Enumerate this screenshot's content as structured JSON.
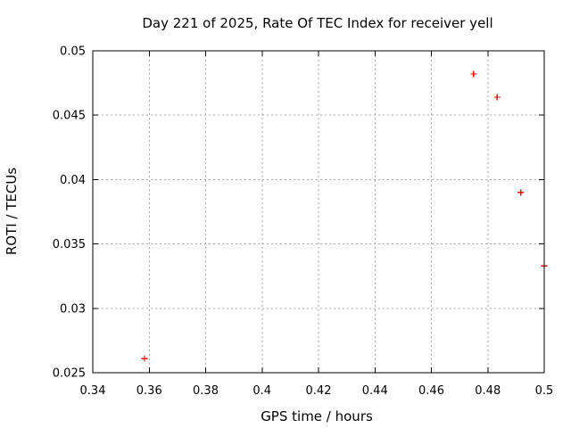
{
  "chart_data": {
    "type": "scatter",
    "title": "Day 221 of 2025, Rate Of TEC Index for receiver yell",
    "xlabel": "GPS time / hours",
    "ylabel": "ROTI / TECUs",
    "xlim": [
      0.34,
      0.5
    ],
    "ylim": [
      0.025,
      0.05
    ],
    "xtick_values": [
      0.34,
      0.36,
      0.38,
      0.4,
      0.42,
      0.44,
      0.46,
      0.48,
      0.5
    ],
    "xtick_labels": [
      "0.34",
      "0.36",
      "0.38",
      "0.4",
      "0.42",
      "0.44",
      "0.46",
      "0.48",
      "0.5"
    ],
    "ytick_values": [
      0.025,
      0.03,
      0.035,
      0.04,
      0.045,
      0.05
    ],
    "ytick_labels": [
      "0.025",
      "0.03",
      "0.035",
      "0.04",
      "0.045",
      "0.05"
    ],
    "grid": true,
    "legend": "none",
    "series": [
      {
        "name": "ROTI",
        "marker": "plus",
        "color": "#ff0000",
        "points": [
          {
            "x": 0.358333,
            "y": 0.0261
          },
          {
            "x": 0.475,
            "y": 0.0482
          },
          {
            "x": 0.483333,
            "y": 0.0464
          },
          {
            "x": 0.491667,
            "y": 0.039
          },
          {
            "x": 0.5,
            "y": 0.0333
          }
        ]
      }
    ],
    "colors": {
      "background": "#ffffff",
      "border": "#000000",
      "grid": "#a6a6a6",
      "text": "#000000"
    }
  }
}
